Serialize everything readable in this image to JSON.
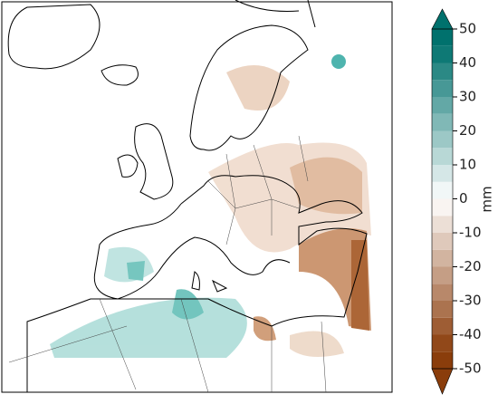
{
  "colorbar": {
    "label": "mm",
    "lim": [
      -50,
      50
    ],
    "ticks": [
      50,
      40,
      30,
      20,
      10,
      0,
      -10,
      -20,
      -30,
      -40,
      -50
    ],
    "band_width": 5,
    "low_color": "#8a3d0b",
    "mid_color": "#ffffff",
    "high_color": "#00716d"
  }
}
